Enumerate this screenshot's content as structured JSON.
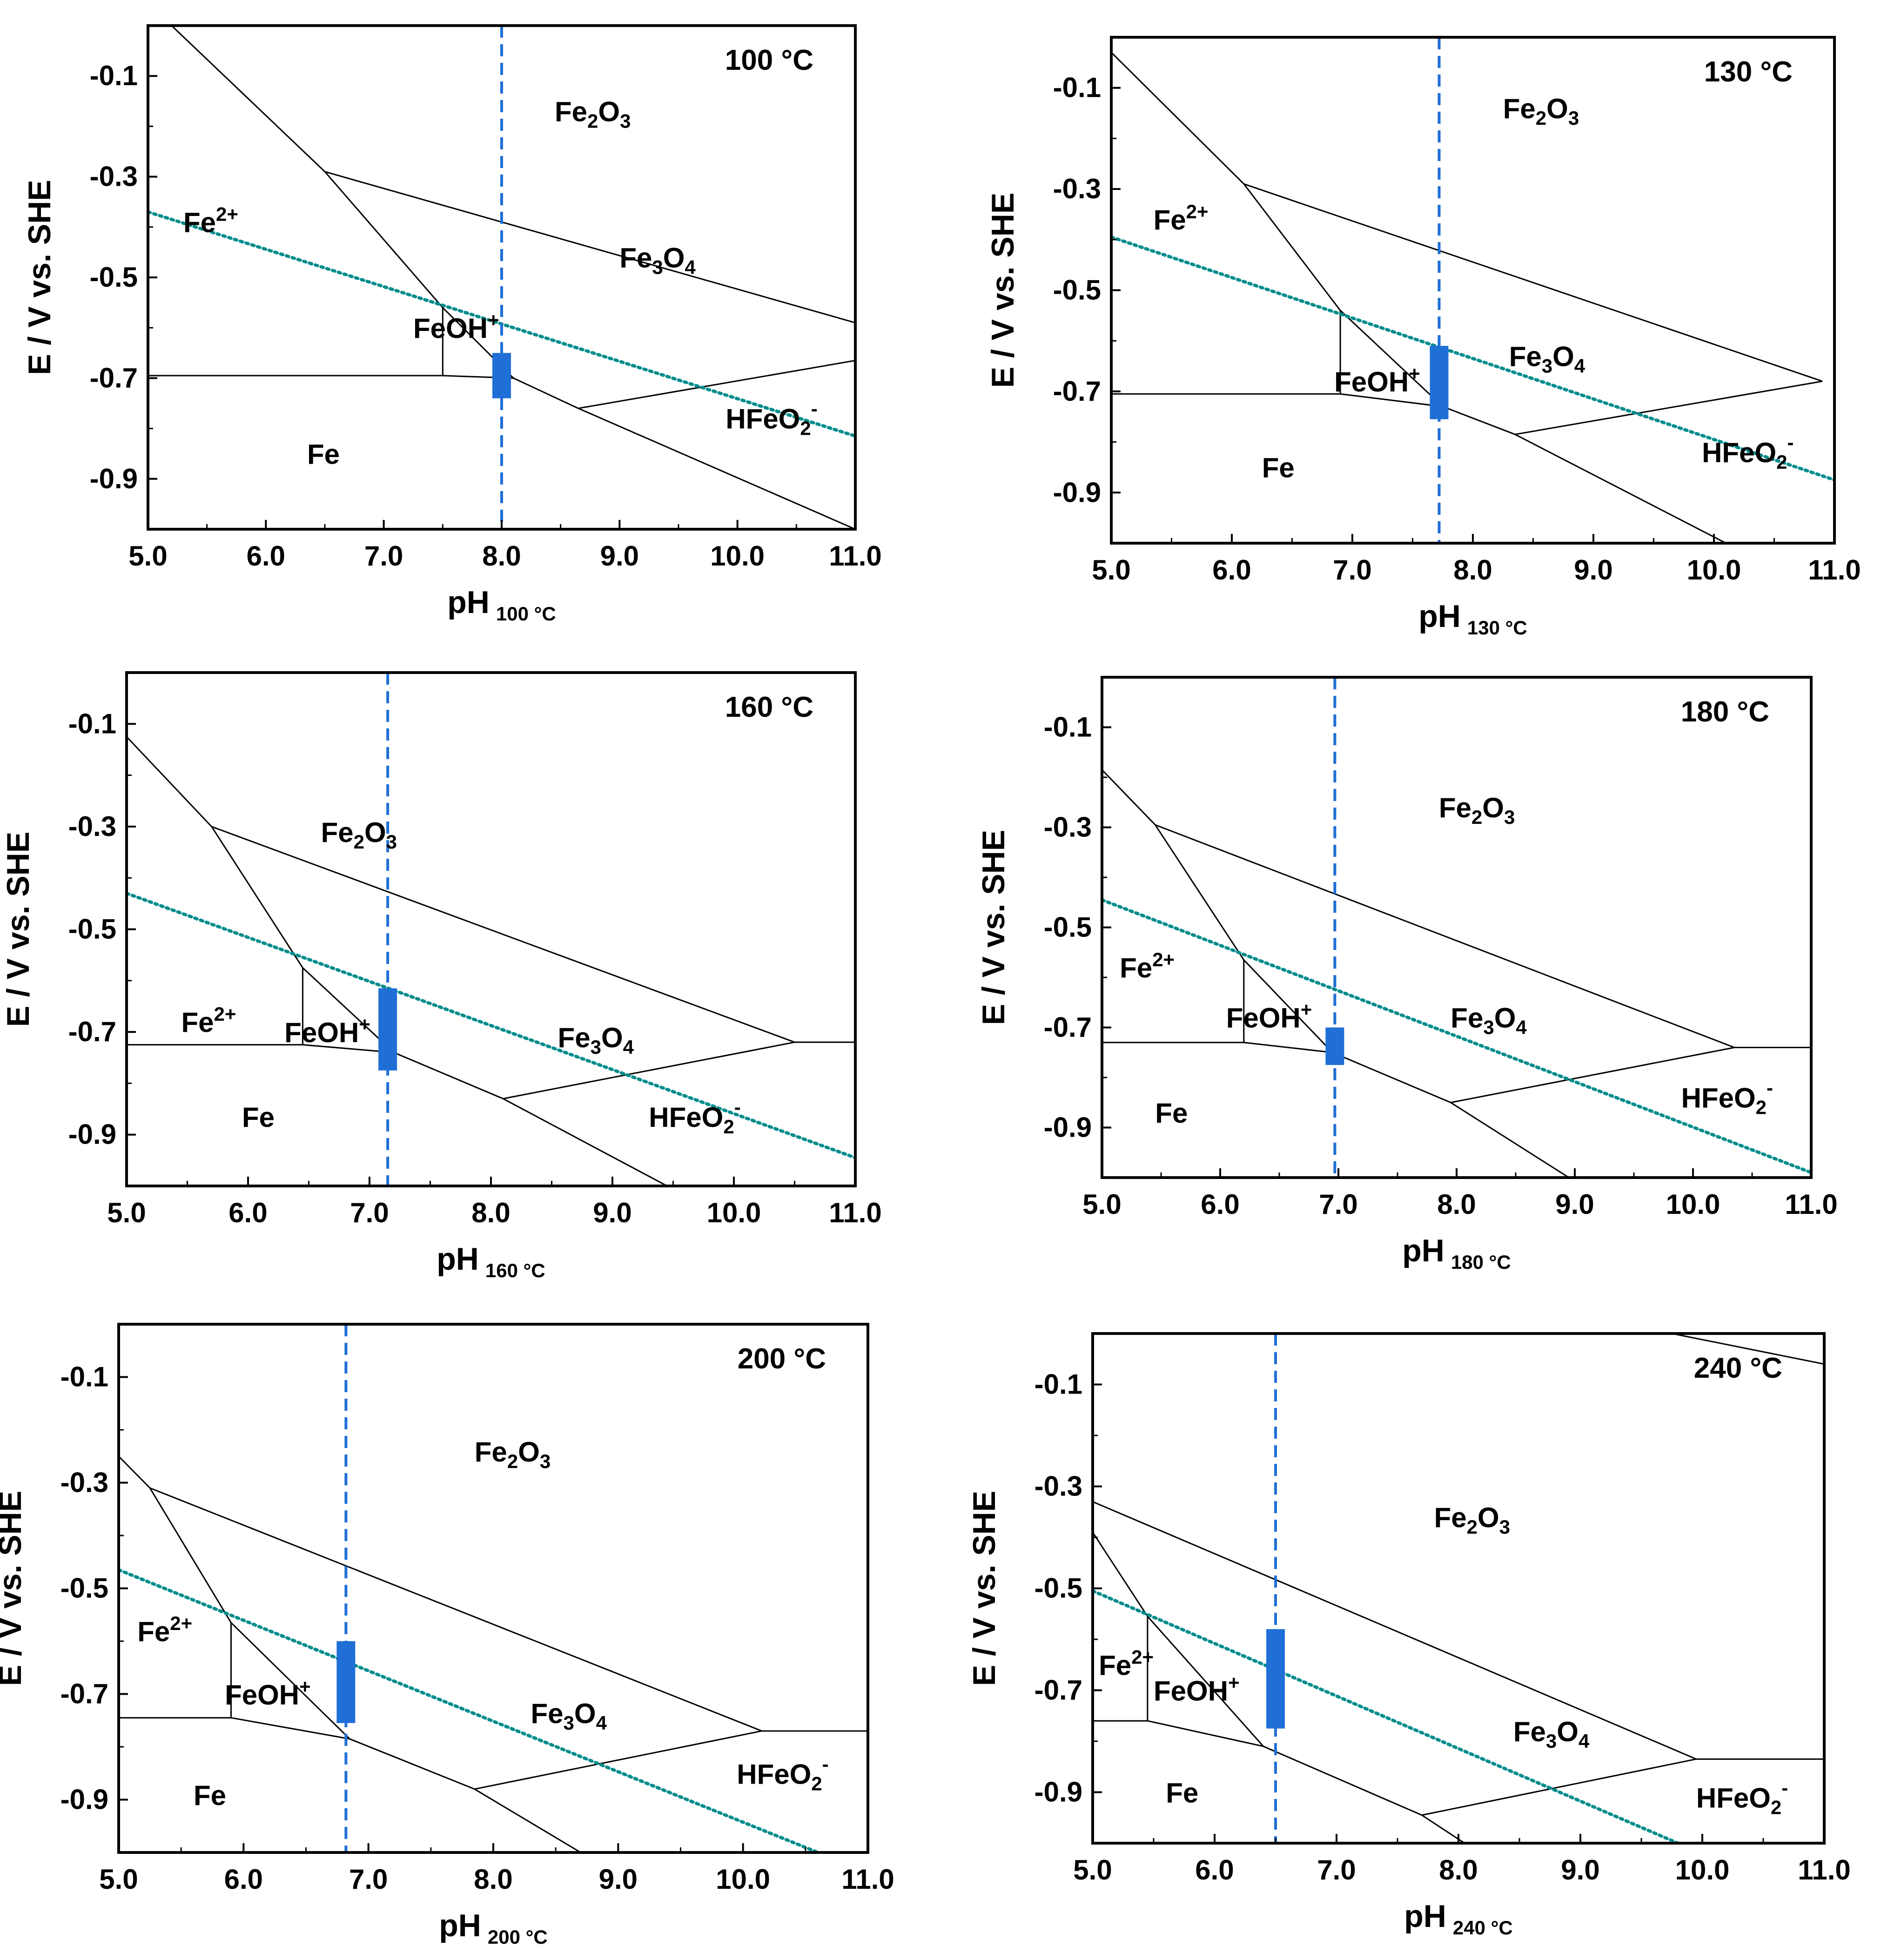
{
  "colors": {
    "boundary": "#000000",
    "operating_ph": "#1f6fd6",
    "potential_bar": "#1f6fd6",
    "water_line": "#008c8c"
  },
  "chart_data": [
    {
      "type": "line",
      "title": "100 °C",
      "xlabel": "pH",
      "xlabel_sub": "100 °C",
      "ylabel": "E / V vs. SHE",
      "xlim": [
        5.0,
        11.0
      ],
      "ylim": [
        -1.0,
        0.0
      ],
      "xticks": [
        "5.0",
        "6.0",
        "7.0",
        "8.0",
        "9.0",
        "10.0",
        "11.0"
      ],
      "yticks": [
        "-0.1",
        "-0.3",
        "-0.5",
        "-0.7",
        "-0.9"
      ],
      "ytick_values": [
        -0.1,
        -0.3,
        -0.5,
        -0.7,
        -0.9
      ],
      "boundaries": [
        [
          [
            5.2,
            0.0
          ],
          [
            6.5,
            -0.29
          ],
          [
            7.5,
            -0.56
          ],
          [
            8.1,
            -0.7
          ],
          [
            8.65,
            -0.76
          ],
          [
            11.0,
            -1.0
          ]
        ],
        [
          [
            6.5,
            -0.29
          ],
          [
            11.0,
            -0.59
          ]
        ],
        [
          [
            5.0,
            -0.695
          ],
          [
            7.5,
            -0.695
          ],
          [
            7.5,
            -0.56
          ]
        ],
        [
          [
            7.5,
            -0.695
          ],
          [
            8.1,
            -0.7
          ]
        ],
        [
          [
            8.65,
            -0.76
          ],
          [
            11.0,
            -0.665
          ]
        ]
      ],
      "water_line": [
        [
          5.0,
          -0.37
        ],
        [
          11.0,
          -0.815
        ]
      ],
      "operating_ph": 8.0,
      "potential_bar": {
        "ph": 8.0,
        "e_top": -0.65,
        "e_bottom": -0.74
      },
      "labels": [
        {
          "base": "Fe",
          "sup": "2+",
          "x": 5.3,
          "y": -0.41
        },
        {
          "base": "Fe",
          "sub": "2",
          "base2": "O",
          "sub2": "3",
          "x": 8.45,
          "y": -0.19
        },
        {
          "base": "Fe",
          "sub": "3",
          "base2": "O",
          "sub2": "4",
          "x": 9.0,
          "y": -0.48
        },
        {
          "base": "FeOH",
          "sup": "+",
          "x": 7.25,
          "y": -0.62
        },
        {
          "base": "HFeO",
          "sub": "2",
          "sup": "-",
          "x": 9.9,
          "y": -0.8
        },
        {
          "base": "Fe",
          "x": 6.35,
          "y": -0.87
        }
      ]
    },
    {
      "type": "line",
      "title": "130 °C",
      "xlabel": "pH",
      "xlabel_sub": "130 °C",
      "ylabel": "E / V vs. SHE",
      "xlim": [
        5.0,
        11.0
      ],
      "ylim": [
        -1.0,
        0.0
      ],
      "xticks": [
        "5.0",
        "6.0",
        "7.0",
        "8.0",
        "9.0",
        "10.0",
        "11.0"
      ],
      "yticks": [
        "-0.1",
        "-0.3",
        "-0.5",
        "-0.7",
        "-0.9"
      ],
      "ytick_values": [
        -0.1,
        -0.3,
        -0.5,
        -0.7,
        -0.9
      ],
      "boundaries": [
        [
          [
            5.0,
            -0.03
          ],
          [
            6.1,
            -0.29
          ],
          [
            6.9,
            -0.54
          ],
          [
            7.75,
            -0.73
          ],
          [
            8.35,
            -0.785
          ],
          [
            10.1,
            -1.0
          ]
        ],
        [
          [
            6.1,
            -0.29
          ],
          [
            10.9,
            -0.68
          ]
        ],
        [
          [
            5.0,
            -0.705
          ],
          [
            6.9,
            -0.705
          ],
          [
            6.9,
            -0.54
          ]
        ],
        [
          [
            6.9,
            -0.705
          ],
          [
            7.75,
            -0.73
          ]
        ],
        [
          [
            8.35,
            -0.785
          ],
          [
            10.9,
            -0.68
          ]
        ]
      ],
      "water_line": [
        [
          5.0,
          -0.395
        ],
        [
          11.0,
          -0.875
        ]
      ],
      "operating_ph": 7.72,
      "potential_bar": {
        "ph": 7.72,
        "e_top": -0.61,
        "e_bottom": -0.755
      },
      "labels": [
        {
          "base": "Fe",
          "sup": "2+",
          "x": 5.35,
          "y": -0.38
        },
        {
          "base": "Fe",
          "sub": "2",
          "base2": "O",
          "sub2": "3",
          "x": 8.25,
          "y": -0.16
        },
        {
          "base": "Fe",
          "sub": "3",
          "base2": "O",
          "sub2": "4",
          "x": 8.3,
          "y": -0.65
        },
        {
          "base": "FeOH",
          "sup": "+",
          "x": 6.85,
          "y": -0.7
        },
        {
          "base": "HFeO",
          "sub": "2",
          "sup": "-",
          "x": 9.9,
          "y": -0.84
        },
        {
          "base": "Fe",
          "x": 6.25,
          "y": -0.87
        }
      ]
    },
    {
      "type": "line",
      "title": "160 °C",
      "xlabel": "pH",
      "xlabel_sub": "160 °C",
      "ylabel": "E / V vs. SHE",
      "xlim": [
        5.0,
        11.0
      ],
      "ylim": [
        -1.0,
        0.0
      ],
      "xticks": [
        "5.0",
        "6.0",
        "7.0",
        "8.0",
        "9.0",
        "10.0",
        "11.0"
      ],
      "yticks": [
        "-0.1",
        "-0.3",
        "-0.5",
        "-0.7",
        "-0.9"
      ],
      "ytick_values": [
        -0.1,
        -0.3,
        -0.5,
        -0.7,
        -0.9
      ],
      "boundaries": [
        [
          [
            5.0,
            -0.125
          ],
          [
            5.7,
            -0.3
          ],
          [
            6.45,
            -0.575
          ],
          [
            7.2,
            -0.74
          ],
          [
            8.1,
            -0.83
          ],
          [
            9.45,
            -1.0
          ]
        ],
        [
          [
            5.7,
            -0.3
          ],
          [
            10.5,
            -0.72
          ]
        ],
        [
          [
            5.0,
            -0.725
          ],
          [
            6.45,
            -0.725
          ],
          [
            6.45,
            -0.575
          ]
        ],
        [
          [
            6.45,
            -0.725
          ],
          [
            7.2,
            -0.74
          ]
        ],
        [
          [
            8.1,
            -0.83
          ],
          [
            10.5,
            -0.72
          ],
          [
            11.0,
            -0.72
          ]
        ]
      ],
      "water_line": [
        [
          5.0,
          -0.43
        ],
        [
          11.0,
          -0.945
        ]
      ],
      "operating_ph": 7.15,
      "potential_bar": {
        "ph": 7.15,
        "e_top": -0.615,
        "e_bottom": -0.775
      },
      "labels": [
        {
          "base": "Fe",
          "sup": "2+",
          "x": 5.45,
          "y": -0.7
        },
        {
          "base": "Fe",
          "sub": "2",
          "base2": "O",
          "sub2": "3",
          "x": 6.6,
          "y": -0.33
        },
        {
          "base": "Fe",
          "sub": "3",
          "base2": "O",
          "sub2": "4",
          "x": 8.55,
          "y": -0.73
        },
        {
          "base": "FeOH",
          "sup": "+",
          "x": 6.3,
          "y": -0.72
        },
        {
          "base": "HFeO",
          "sub": "2",
          "sup": "-",
          "x": 9.3,
          "y": -0.885
        },
        {
          "base": "Fe",
          "x": 5.95,
          "y": -0.885
        }
      ]
    },
    {
      "type": "line",
      "title": "180 °C",
      "xlabel": "pH",
      "xlabel_sub": "180 °C",
      "ylabel": "E / V vs. SHE",
      "xlim": [
        5.0,
        11.0
      ],
      "ylim": [
        -1.0,
        0.0
      ],
      "xticks": [
        "5.0",
        "6.0",
        "7.0",
        "8.0",
        "9.0",
        "10.0",
        "11.0"
      ],
      "yticks": [
        "-0.1",
        "-0.3",
        "-0.5",
        "-0.7",
        "-0.9"
      ],
      "ytick_values": [
        -0.1,
        -0.3,
        -0.5,
        -0.7,
        -0.9
      ],
      "boundaries": [
        [
          [
            5.0,
            -0.185
          ],
          [
            5.45,
            -0.295
          ],
          [
            6.2,
            -0.565
          ],
          [
            6.95,
            -0.75
          ],
          [
            7.95,
            -0.85
          ],
          [
            8.95,
            -1.0
          ]
        ],
        [
          [
            5.45,
            -0.295
          ],
          [
            10.35,
            -0.74
          ],
          [
            11.0,
            -0.74
          ]
        ],
        [
          [
            5.0,
            -0.73
          ],
          [
            6.2,
            -0.73
          ],
          [
            6.2,
            -0.565
          ]
        ],
        [
          [
            6.2,
            -0.73
          ],
          [
            6.95,
            -0.75
          ]
        ],
        [
          [
            7.95,
            -0.85
          ],
          [
            10.35,
            -0.74
          ]
        ]
      ],
      "water_line": [
        [
          5.0,
          -0.445
        ],
        [
          11.0,
          -0.99
        ]
      ],
      "operating_ph": 6.97,
      "potential_bar": {
        "ph": 6.97,
        "e_top": -0.7,
        "e_bottom": -0.775
      },
      "labels": [
        {
          "base": "Fe",
          "sup": "2+",
          "x": 5.15,
          "y": -0.6
        },
        {
          "base": "Fe",
          "sub": "2",
          "base2": "O",
          "sub2": "3",
          "x": 7.85,
          "y": -0.28
        },
        {
          "base": "Fe",
          "sub": "3",
          "base2": "O",
          "sub2": "4",
          "x": 7.95,
          "y": -0.7
        },
        {
          "base": "FeOH",
          "sup": "+",
          "x": 6.05,
          "y": -0.7
        },
        {
          "base": "HFeO",
          "sub": "2",
          "sup": "-",
          "x": 9.9,
          "y": -0.86
        },
        {
          "base": "Fe",
          "x": 5.45,
          "y": -0.89
        }
      ]
    },
    {
      "type": "line",
      "title": "200 °C",
      "xlabel": "pH",
      "xlabel_sub": "200 °C",
      "ylabel": "E / V vs. SHE",
      "xlim": [
        5.0,
        11.0
      ],
      "ylim": [
        -1.0,
        0.0
      ],
      "xticks": [
        "5.0",
        "6.0",
        "7.0",
        "8.0",
        "9.0",
        "10.0",
        "11.0"
      ],
      "yticks": [
        "-0.1",
        "-0.3",
        "-0.5",
        "-0.7",
        "-0.9"
      ],
      "ytick_values": [
        -0.1,
        -0.3,
        -0.5,
        -0.7,
        -0.9
      ],
      "boundaries": [
        [
          [
            5.0,
            -0.25
          ],
          [
            5.25,
            -0.31
          ],
          [
            5.9,
            -0.565
          ],
          [
            6.85,
            -0.785
          ],
          [
            7.85,
            -0.88
          ],
          [
            8.7,
            -1.0
          ]
        ],
        [
          [
            5.25,
            -0.31
          ],
          [
            10.15,
            -0.77
          ],
          [
            11.0,
            -0.77
          ]
        ],
        [
          [
            5.0,
            -0.745
          ],
          [
            5.9,
            -0.745
          ],
          [
            5.9,
            -0.565
          ]
        ],
        [
          [
            5.9,
            -0.745
          ],
          [
            6.85,
            -0.785
          ]
        ],
        [
          [
            7.85,
            -0.88
          ],
          [
            10.15,
            -0.77
          ]
        ]
      ],
      "water_line": [
        [
          5.0,
          -0.465
        ],
        [
          10.6,
          -1.0
        ]
      ],
      "operating_ph": 6.82,
      "potential_bar": {
        "ph": 6.82,
        "e_top": -0.6,
        "e_bottom": -0.755
      },
      "labels": [
        {
          "base": "Fe",
          "sup": "2+",
          "x": 5.15,
          "y": -0.6
        },
        {
          "base": "Fe",
          "sub": "2",
          "base2": "O",
          "sub2": "3",
          "x": 7.85,
          "y": -0.26
        },
        {
          "base": "Fe",
          "sub": "3",
          "base2": "O",
          "sub2": "4",
          "x": 8.3,
          "y": -0.755
        },
        {
          "base": "FeOH",
          "sup": "+",
          "x": 5.85,
          "y": -0.72
        },
        {
          "base": "HFeO",
          "sub": "2",
          "sup": "-",
          "x": 9.95,
          "y": -0.87
        },
        {
          "base": "Fe",
          "x": 5.6,
          "y": -0.91
        }
      ]
    },
    {
      "type": "line",
      "title": "240 °C",
      "xlabel": "pH",
      "xlabel_sub": "240 °C",
      "ylabel": "E / V vs. SHE",
      "xlim": [
        5.0,
        11.0
      ],
      "ylim": [
        -1.0,
        0.0
      ],
      "xticks": [
        "5.0",
        "6.0",
        "7.0",
        "8.0",
        "9.0",
        "10.0",
        "11.0"
      ],
      "yticks": [
        "-0.1",
        "-0.3",
        "-0.5",
        "-0.7",
        "-0.9"
      ],
      "ytick_values": [
        -0.1,
        -0.3,
        -0.5,
        -0.7,
        -0.9
      ],
      "boundaries": [
        [
          [
            5.0,
            -0.39
          ],
          [
            5.45,
            -0.555
          ],
          [
            6.4,
            -0.81
          ],
          [
            7.7,
            -0.945
          ],
          [
            8.05,
            -1.0
          ]
        ],
        [
          [
            5.0,
            -0.33
          ],
          [
            9.95,
            -0.835
          ],
          [
            11.0,
            -0.835
          ]
        ],
        [
          [
            5.0,
            -0.76
          ],
          [
            5.45,
            -0.76
          ],
          [
            5.45,
            -0.555
          ]
        ],
        [
          [
            5.45,
            -0.76
          ],
          [
            6.4,
            -0.81
          ]
        ],
        [
          [
            7.7,
            -0.945
          ],
          [
            9.95,
            -0.835
          ]
        ],
        [
          [
            9.75,
            0.0
          ],
          [
            11.0,
            -0.06
          ]
        ]
      ],
      "water_line": [
        [
          5.0,
          -0.505
        ],
        [
          9.8,
          -1.0
        ]
      ],
      "operating_ph": 6.5,
      "potential_bar": {
        "ph": 6.5,
        "e_top": -0.58,
        "e_bottom": -0.775
      },
      "labels": [
        {
          "base": "Fe",
          "sup": "2+",
          "x": 5.05,
          "y": -0.67
        },
        {
          "base": "Fe",
          "sub": "2",
          "base2": "O",
          "sub2": "3",
          "x": 7.8,
          "y": -0.38
        },
        {
          "base": "Fe",
          "sub": "3",
          "base2": "O",
          "sub2": "4",
          "x": 8.45,
          "y": -0.8
        },
        {
          "base": "FeOH",
          "sup": "+",
          "x": 5.5,
          "y": -0.72
        },
        {
          "base": "HFeO",
          "sub": "2",
          "sup": "-",
          "x": 9.95,
          "y": -0.93
        },
        {
          "base": "Fe",
          "x": 5.6,
          "y": -0.92
        }
      ]
    }
  ]
}
